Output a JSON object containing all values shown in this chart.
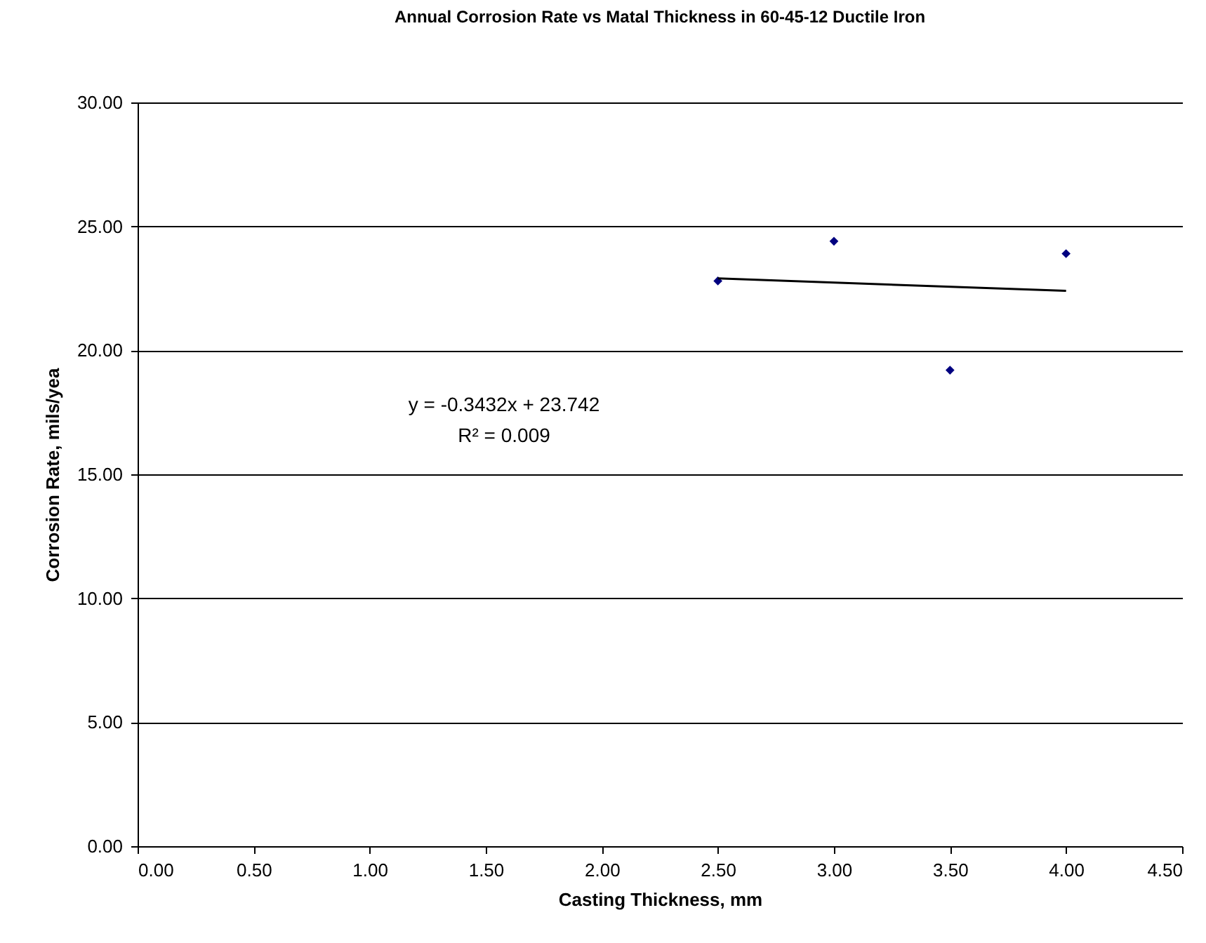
{
  "chart_data": {
    "type": "scatter",
    "title": "Annual Corrosion Rate vs Matal Thickness in 60-45-12 Ductile Iron",
    "xlabel": "Casting Thickness, mm",
    "ylabel": "Corrosion Rate, mils/yea",
    "xlim": [
      0,
      4.5
    ],
    "xticks": [
      {
        "value": 0,
        "label": "0.00"
      },
      {
        "value": 0.5,
        "label": "0.50"
      },
      {
        "value": 1,
        "label": "1.00"
      },
      {
        "value": 1.5,
        "label": "1.50"
      },
      {
        "value": 2,
        "label": "2.00"
      },
      {
        "value": 2.5,
        "label": "2.50"
      },
      {
        "value": 3,
        "label": "3.00"
      },
      {
        "value": 3.5,
        "label": "3.50"
      },
      {
        "value": 4,
        "label": "4.00"
      },
      {
        "value": 4.5,
        "label": "4.50"
      }
    ],
    "ylim": [
      0,
      30
    ],
    "yticks": [
      {
        "value": 0,
        "label": "0.00"
      },
      {
        "value": 5,
        "label": "5.00"
      },
      {
        "value": 10,
        "label": "10.00"
      },
      {
        "value": 15,
        "label": "15.00"
      },
      {
        "value": 20,
        "label": "20.00"
      },
      {
        "value": 25,
        "label": "25.00"
      },
      {
        "value": 30,
        "label": "30.00"
      }
    ],
    "grid": "y",
    "series": [
      {
        "color": "#000080",
        "marker": "diamond",
        "x": [
          2.5,
          3,
          3.5,
          4
        ],
        "values": [
          22.8,
          24.4,
          19.2,
          23.9
        ]
      },
      {
        "type": "line",
        "color": "#000000",
        "marker": "none",
        "x": [
          2.5,
          4
        ],
        "values": [
          22.9,
          22.4
        ]
      }
    ],
    "annotations": [
      "y = -0.3432x + 23.742",
      "R² = 0.009"
    ]
  }
}
